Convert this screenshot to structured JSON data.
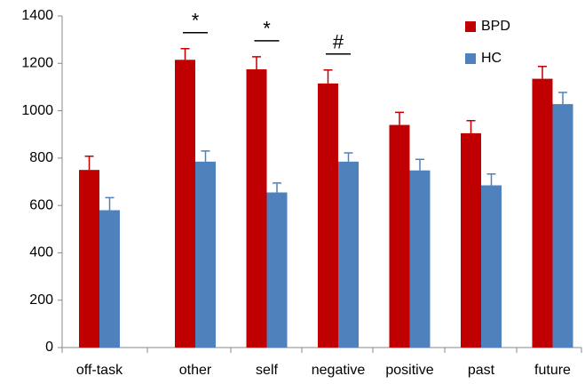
{
  "chart_data": {
    "type": "bar",
    "categories": [
      "off-task",
      "other",
      "self",
      "negative",
      "positive",
      "past",
      "future"
    ],
    "series": [
      {
        "name": "BPD",
        "color": "#c00000",
        "values": [
          750,
          1215,
          1175,
          1115,
          940,
          905,
          1135
        ],
        "errors": [
          58,
          47,
          53,
          57,
          53,
          53,
          52
        ]
      },
      {
        "name": "HC",
        "color": "#4f81bd",
        "values": [
          580,
          785,
          655,
          785,
          748,
          685,
          1028
        ],
        "errors": [
          53,
          45,
          40,
          37,
          47,
          48,
          49
        ]
      }
    ],
    "annotations": [
      null,
      "*",
      "*",
      "#",
      null,
      null,
      null
    ],
    "ylim": [
      0,
      1400
    ],
    "yticks": [
      0,
      200,
      400,
      600,
      800,
      1000,
      1200,
      1400
    ],
    "grid": false,
    "legend": "upper right"
  }
}
